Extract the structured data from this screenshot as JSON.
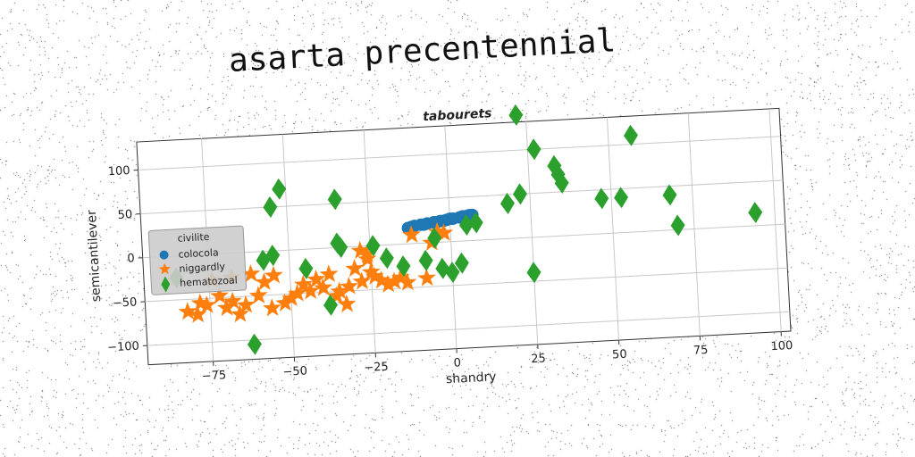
{
  "title": "asarta precentennial",
  "colors": {
    "colocola": "#1f77b4",
    "niggardly": "#ff7f0e",
    "hematozoal": "#2ca02c"
  },
  "chart_data": {
    "type": "scatter",
    "title": "tabourets",
    "xlabel": "shandry",
    "ylabel": "semicantilever",
    "xlim": [
      -95,
      103
    ],
    "ylim": [
      -122,
      132
    ],
    "xticks": [
      -75,
      -50,
      -25,
      0,
      25,
      50,
      75,
      100
    ],
    "yticks": [
      -100,
      -50,
      0,
      50,
      100
    ],
    "xtick_labels": [
      "−75",
      "−50",
      "−25",
      "0",
      "25",
      "50",
      "75",
      "100"
    ],
    "ytick_labels": [
      "−100",
      "−50",
      "0",
      "50",
      "100"
    ],
    "grid": true,
    "legend_position": "center-left",
    "legend": [
      "civilite",
      "colocola",
      "niggardly",
      "hematozoal"
    ],
    "series": [
      {
        "name": "colocola",
        "marker": "circle",
        "points": [
          [
            -13,
            18
          ],
          [
            -11,
            20
          ],
          [
            -9,
            21
          ],
          [
            -7,
            22
          ],
          [
            -5,
            23
          ],
          [
            -3,
            24
          ],
          [
            -1,
            25
          ],
          [
            1,
            26
          ],
          [
            3,
            27
          ],
          [
            5,
            28
          ],
          [
            7,
            29
          ],
          [
            -12,
            19
          ],
          [
            -8,
            21
          ],
          [
            -4,
            23
          ],
          [
            0,
            26
          ],
          [
            4,
            28
          ],
          [
            6,
            29
          ],
          [
            -2,
            24
          ]
        ]
      },
      {
        "name": "niggardly",
        "marker": "star",
        "points": [
          [
            -82,
            -64
          ],
          [
            -79,
            -68
          ],
          [
            -78,
            -55
          ],
          [
            -76,
            -58
          ],
          [
            -74,
            -30
          ],
          [
            -72,
            -48
          ],
          [
            -70,
            -62
          ],
          [
            -68,
            -55
          ],
          [
            -68,
            -28
          ],
          [
            -66,
            -70
          ],
          [
            -64,
            -60
          ],
          [
            -62,
            -25
          ],
          [
            -60,
            -50
          ],
          [
            -58,
            -35
          ],
          [
            -56,
            -65
          ],
          [
            -55,
            -28
          ],
          [
            -52,
            -60
          ],
          [
            -50,
            -55
          ],
          [
            -48,
            -50
          ],
          [
            -46,
            -40
          ],
          [
            -44,
            -48
          ],
          [
            -42,
            -35
          ],
          [
            -40,
            -45
          ],
          [
            -38,
            -30
          ],
          [
            -36,
            -55
          ],
          [
            -35,
            -50
          ],
          [
            -33,
            -65
          ],
          [
            -32,
            -45
          ],
          [
            -30,
            -25
          ],
          [
            -28,
            -40
          ],
          [
            -28,
            -5
          ],
          [
            -26,
            -10
          ],
          [
            -25,
            -30
          ],
          [
            -24,
            -35
          ],
          [
            -22,
            -40
          ],
          [
            -20,
            -45
          ],
          [
            -18,
            -42
          ],
          [
            -16,
            -38
          ],
          [
            -14,
            -44
          ],
          [
            -12,
            10
          ],
          [
            -8,
            -40
          ],
          [
            -6,
            0
          ],
          [
            -4,
            12
          ],
          [
            -2,
            10
          ],
          [
            -26,
            -15
          ]
        ]
      },
      {
        "name": "hematozoal",
        "marker": "diamond",
        "points": [
          [
            -85,
            -25
          ],
          [
            -62,
            -105
          ],
          [
            -58,
            -10
          ],
          [
            -55,
            -5
          ],
          [
            -55,
            50
          ],
          [
            -52,
            70
          ],
          [
            -45,
            -22
          ],
          [
            -38,
            -65
          ],
          [
            -35,
            55
          ],
          [
            -35,
            5
          ],
          [
            -34,
            0
          ],
          [
            -24,
            0
          ],
          [
            -20,
            -15
          ],
          [
            -15,
            -25
          ],
          [
            -8,
            -20
          ],
          [
            -5,
            5
          ],
          [
            -3,
            -30
          ],
          [
            0,
            -35
          ],
          [
            3,
            -25
          ],
          [
            5,
            18
          ],
          [
            8,
            20
          ],
          [
            18,
            40
          ],
          [
            22,
            50
          ],
          [
            22,
            140
          ],
          [
            25,
            -40
          ],
          [
            27,
            100
          ],
          [
            33,
            80
          ],
          [
            34,
            70
          ],
          [
            35,
            60
          ],
          [
            47,
            40
          ],
          [
            53,
            40
          ],
          [
            57,
            110
          ],
          [
            68,
            40
          ],
          [
            70,
            5
          ],
          [
            94,
            15
          ]
        ]
      }
    ]
  }
}
